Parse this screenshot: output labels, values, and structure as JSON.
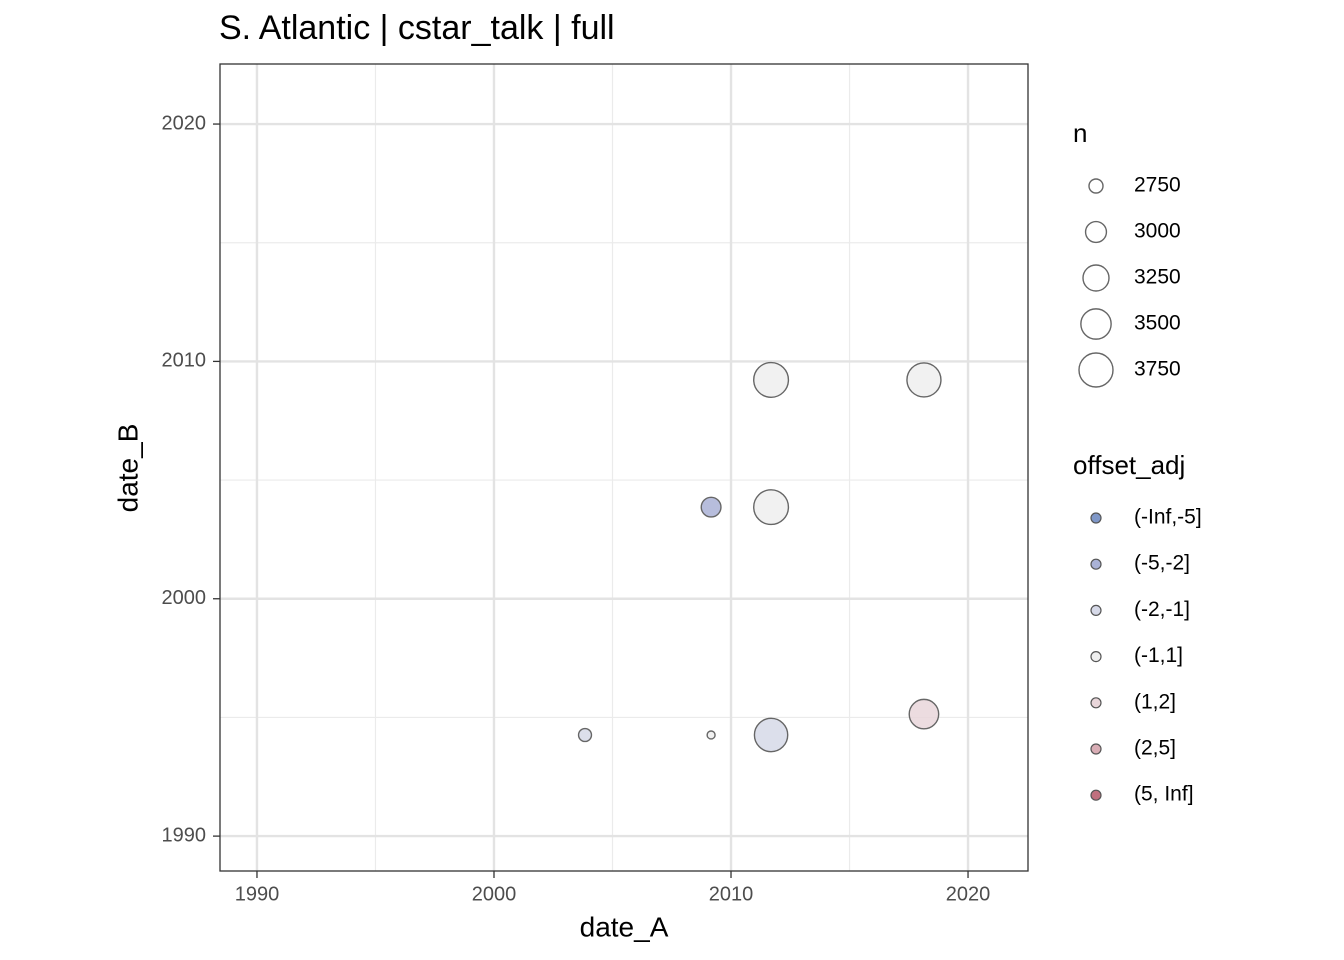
{
  "chart_data": {
    "type": "scatter",
    "title": "S. Atlantic | cstar_talk | full",
    "x_label": "date_A",
    "y_label": "date_B",
    "xlim": [
      1988.44,
      2022.53
    ],
    "ylim": [
      1988.53,
      2022.53
    ],
    "xticks": [
      1990,
      2000,
      2010,
      2020
    ],
    "yticks": [
      1990,
      2000,
      2010,
      2020
    ],
    "xminorticks": [
      1995,
      2005,
      2015
    ],
    "yminorticks": [
      1995,
      2005,
      2015
    ],
    "grid": true,
    "size_legend": {
      "title": "n",
      "values": [
        2750,
        3000,
        3250,
        3500,
        3750
      ]
    },
    "color_legend_title": "offset_adj",
    "series": [
      {
        "name": "(-Inf,-5]",
        "color": "#7f97c8",
        "x": [],
        "y": [],
        "n": []
      },
      {
        "name": "(-5,-2]",
        "color": "#aab2d6",
        "x": [
          2009.16
        ],
        "y": [
          2003.86
        ],
        "n": [
          2950
        ]
      },
      {
        "name": "(-2,-1]",
        "color": "#d6d9e8",
        "x": [
          2003.84,
          2011.69
        ],
        "y": [
          1994.26,
          1994.26
        ],
        "n": [
          2720,
          3700
        ]
      },
      {
        "name": "(-1,1]",
        "color": "#eeeeee",
        "x": [
          2009.16,
          2011.69,
          2011.69,
          2018.14
        ],
        "y": [
          1994.26,
          2003.86,
          2009.22,
          2009.22
        ],
        "n": [
          2612,
          3800,
          3800,
          3750
        ]
      },
      {
        "name": "(1,2]",
        "color": "#e9d6da",
        "x": [
          2018.14
        ],
        "y": [
          1995.14
        ],
        "n": [
          3450
        ]
      },
      {
        "name": "(2,5]",
        "color": "#d9adb5",
        "x": [],
        "y": [],
        "n": []
      },
      {
        "name": "(5, Inf]",
        "color": "#c0707e",
        "x": [],
        "y": [],
        "n": []
      }
    ]
  }
}
